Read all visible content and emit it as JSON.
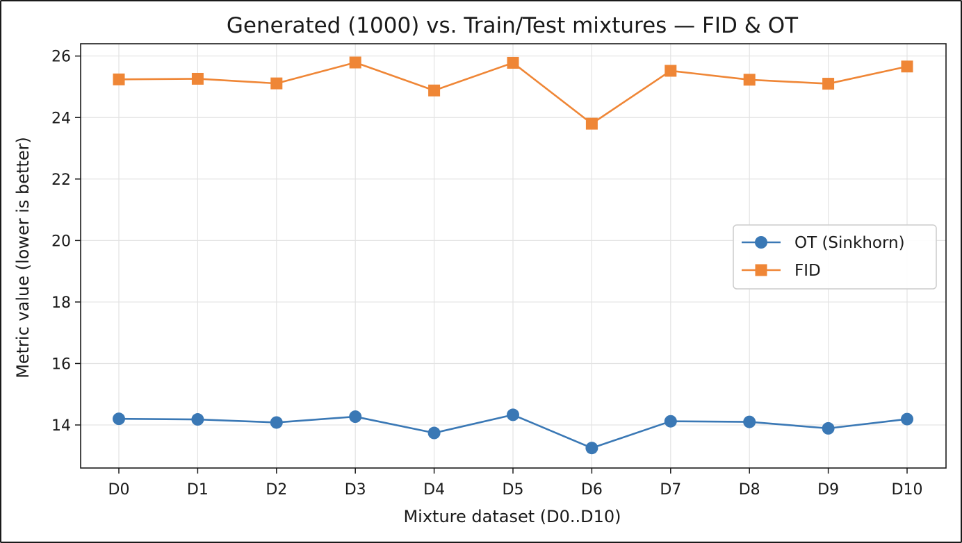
{
  "chart_data": {
    "type": "line",
    "title": "Generated (1000) vs. Train/Test mixtures — FID & OT",
    "xlabel": "Mixture dataset (D0..D10)",
    "ylabel": "Metric value (lower is better)",
    "categories": [
      "D0",
      "D1",
      "D2",
      "D3",
      "D4",
      "D5",
      "D6",
      "D7",
      "D8",
      "D9",
      "D10"
    ],
    "ylim": [
      12.6,
      26.4
    ],
    "yticks": [
      14,
      16,
      18,
      20,
      22,
      24,
      26
    ],
    "grid": true,
    "legend_position": "center-right",
    "series": [
      {
        "name": "OT (Sinkhorn)",
        "color": "#3a78b5",
        "marker": "circle",
        "values": [
          14.2,
          14.18,
          14.08,
          14.27,
          13.74,
          14.33,
          13.25,
          14.12,
          14.1,
          13.89,
          14.19
        ]
      },
      {
        "name": "FID",
        "color": "#ef8636",
        "marker": "square",
        "values": [
          25.24,
          25.26,
          25.11,
          25.79,
          24.88,
          25.78,
          23.8,
          25.52,
          25.23,
          25.1,
          25.66
        ]
      }
    ]
  }
}
